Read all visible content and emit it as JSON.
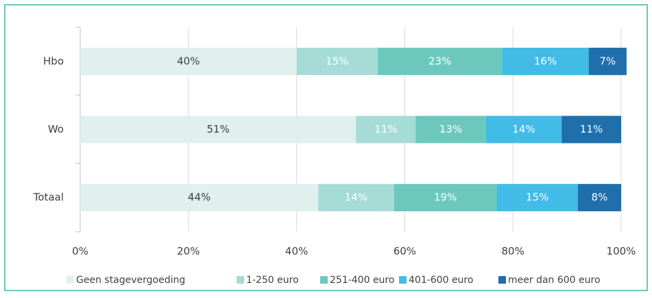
{
  "chart_data": {
    "type": "stacked-bar-horizontal",
    "categories": [
      "Hbo",
      "Wo",
      "Totaal"
    ],
    "series": [
      {
        "name": "Geen stagevergoeding",
        "color": "#dff0ee",
        "label_color": "#404040",
        "values": [
          40,
          51,
          44
        ],
        "value_labels": [
          "40%",
          "51%",
          "44%"
        ]
      },
      {
        "name": "1-250 euro",
        "color": "#a6dcd6",
        "label_color": "#ffffff",
        "values": [
          15,
          11,
          14
        ],
        "value_labels": [
          "15%",
          "11%",
          "14%"
        ]
      },
      {
        "name": "251-400 euro",
        "color": "#6cc8bd",
        "label_color": "#ffffff",
        "values": [
          23,
          13,
          19
        ],
        "value_labels": [
          "23%",
          "13%",
          "19%"
        ]
      },
      {
        "name": "401-600 euro",
        "color": "#42bbe6",
        "label_color": "#ffffff",
        "values": [
          16,
          14,
          15
        ],
        "value_labels": [
          "16%",
          "14%",
          "15%"
        ]
      },
      {
        "name": "meer dan 600 euro",
        "color": "#1f6fad",
        "label_color": "#ffffff",
        "values": [
          7,
          11,
          8
        ],
        "value_labels": [
          "7%",
          "11%",
          "8%"
        ]
      }
    ],
    "xlim": [
      0,
      100
    ],
    "xticks": [
      {
        "value": 0,
        "label": "0%"
      },
      {
        "value": 20,
        "label": "20%"
      },
      {
        "value": 40,
        "label": "40%"
      },
      {
        "value": 60,
        "label": "60%"
      },
      {
        "value": 80,
        "label": "80%"
      },
      {
        "value": 100,
        "label": "100%"
      }
    ],
    "grid": true,
    "legend": "bottom"
  }
}
